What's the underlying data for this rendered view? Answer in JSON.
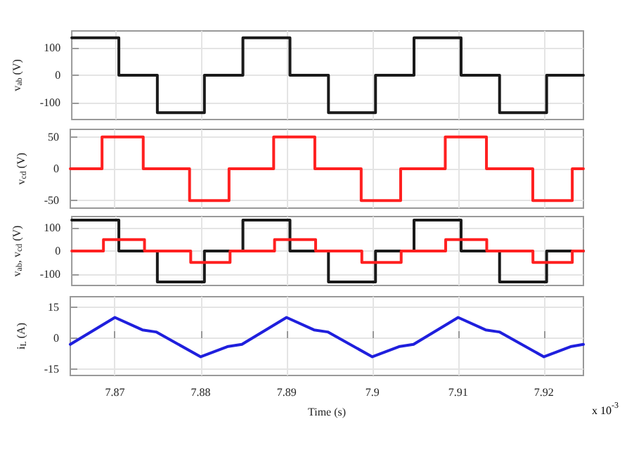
{
  "chart_data": [
    {
      "type": "step",
      "ylabel": "v$_{ab}$ (V)",
      "xlim": [
        7.8648,
        7.9246
      ],
      "xticks": [
        7.87,
        7.88,
        7.89,
        7.9,
        7.91,
        7.92
      ],
      "ylim": [
        -160,
        160
      ],
      "yticks": [
        -100,
        0,
        100
      ],
      "grid": true,
      "tick_labels": "y",
      "series": [
        {
          "color": "#1a1a1a",
          "x": [
            7.8648,
            7.8703,
            7.8748,
            7.8803,
            7.8848,
            7.8903,
            7.8948,
            7.9003,
            7.9048,
            7.9103,
            7.9148,
            7.9203,
            7.9246
          ],
          "values": [
            135,
            0,
            -135,
            0,
            135,
            0,
            -135,
            0,
            135,
            0,
            -135,
            0,
            0
          ]
        }
      ]
    },
    {
      "type": "step",
      "ylabel": "v$_{cd}$ (V)",
      "xlim": [
        7.8648,
        7.9246
      ],
      "xticks": [
        7.87,
        7.88,
        7.89,
        7.9,
        7.91,
        7.92
      ],
      "ylim": [
        -62,
        62
      ],
      "yticks": [
        -50,
        0,
        50
      ],
      "grid": true,
      "tick_labels": "y",
      "series": [
        {
          "color": "#ff2020",
          "x": [
            7.8648,
            7.8685,
            7.8733,
            7.8787,
            7.8833,
            7.8885,
            7.8933,
            7.8987,
            7.9033,
            7.9085,
            7.9133,
            7.9187,
            7.9233,
            7.9246
          ],
          "values": [
            0,
            50,
            0,
            -50,
            0,
            50,
            0,
            -50,
            0,
            50,
            0,
            -50,
            0,
            0
          ]
        }
      ]
    },
    {
      "type": "step",
      "ylabel": "v$_{ab}$, v$_{cd}$ (V)",
      "xlim": [
        7.8648,
        7.9246
      ],
      "xticks": [
        7.87,
        7.88,
        7.89,
        7.9,
        7.91,
        7.92
      ],
      "ylim": [
        -150,
        150
      ],
      "yticks": [
        -100,
        0,
        100
      ],
      "grid": true,
      "tick_labels": "y",
      "series": [
        {
          "color": "#1a1a1a",
          "x": [
            7.8648,
            7.8703,
            7.8748,
            7.8803,
            7.8848,
            7.8903,
            7.8948,
            7.9003,
            7.9048,
            7.9103,
            7.9148,
            7.9203,
            7.9246
          ],
          "values": [
            135,
            0,
            -135,
            0,
            135,
            0,
            -135,
            0,
            135,
            0,
            -135,
            0,
            0
          ]
        },
        {
          "color": "#ff2020",
          "x": [
            7.8648,
            7.8685,
            7.8733,
            7.8787,
            7.8833,
            7.8885,
            7.8933,
            7.8987,
            7.9033,
            7.9085,
            7.9133,
            7.9187,
            7.9233,
            7.9246
          ],
          "values": [
            0,
            50,
            0,
            -50,
            0,
            50,
            0,
            -50,
            0,
            50,
            0,
            -50,
            0,
            0
          ]
        }
      ]
    },
    {
      "type": "line",
      "ylabel": "i$_{L}$ (A)",
      "xlabel": "Time (s)",
      "annotations": [
        "x 10$^{-3}$"
      ],
      "xlim": [
        7.8648,
        7.9246
      ],
      "xticks": [
        7.87,
        7.88,
        7.89,
        7.9,
        7.91,
        7.92
      ],
      "ylim": [
        -18,
        20
      ],
      "yticks": [
        -15,
        0,
        15
      ],
      "grid": true,
      "series": [
        {
          "color": "#1f1fdd",
          "x": [
            7.8648,
            7.87,
            7.8732,
            7.8748,
            7.88,
            7.8832,
            7.8848,
            7.89,
            7.8932,
            7.8948,
            7.9,
            7.9032,
            7.9048,
            7.91,
            7.9132,
            7.9148,
            7.92,
            7.9232,
            7.9246
          ],
          "values": [
            -3,
            10,
            4,
            3,
            -9,
            -4,
            -3,
            10,
            4,
            3,
            -9,
            -4,
            -3,
            10,
            4,
            3,
            -9,
            -4,
            -3
          ]
        }
      ]
    }
  ]
}
